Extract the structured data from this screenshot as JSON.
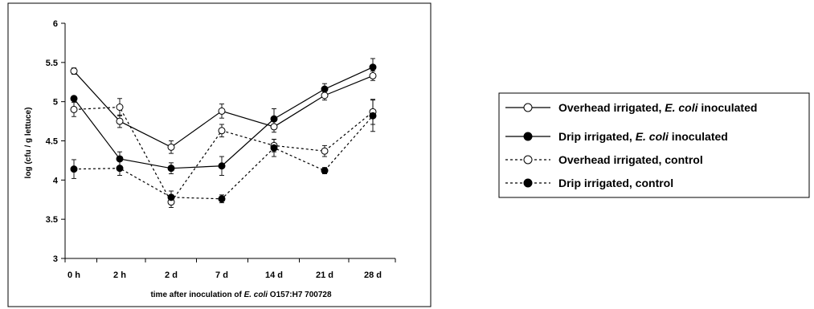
{
  "chart_data": {
    "type": "line",
    "categories": [
      "0 h",
      "2 h",
      "2 d",
      "7 d",
      "14 d",
      "21 d",
      "28 d"
    ],
    "ylim": [
      3,
      6
    ],
    "yticks": [
      "3",
      "3.5",
      "4",
      "4.5",
      "5",
      "5.5",
      "6"
    ],
    "ylabel": "log (cfu / g lettuce)",
    "xlabel": {
      "prefix": "time after inoculation of ",
      "italic": "E. coli",
      "suffix": " O157:H7 700728"
    },
    "legend_position": "right",
    "grid": false,
    "series": [
      {
        "name": "Overhead irrigated, E. coli inoculated",
        "legend": {
          "prefix": "Overhead irrigated, ",
          "italic": "E. coli",
          "suffix": " inoculated"
        },
        "marker": "open-circle",
        "line": "solid",
        "values": [
          5.39,
          4.75,
          4.42,
          4.88,
          4.68,
          5.08,
          5.33
        ],
        "errors": [
          0.04,
          0.08,
          0.08,
          0.09,
          0.07,
          0.06,
          0.06
        ]
      },
      {
        "name": "Drip irrigated, E. coli inoculated",
        "legend": {
          "prefix": "Drip irrigated, ",
          "italic": "E. coli",
          "suffix": " inoculated"
        },
        "marker": "filled-circle",
        "line": "solid",
        "values": [
          5.04,
          4.27,
          4.15,
          4.18,
          4.78,
          5.16,
          5.44
        ],
        "errors": [
          0.03,
          0.09,
          0.07,
          0.12,
          0.13,
          0.07,
          0.11
        ]
      },
      {
        "name": "Overhead irrigated, control",
        "legend": {
          "prefix": "Overhead irrigated, control",
          "italic": "",
          "suffix": ""
        },
        "marker": "open-circle",
        "line": "dashed",
        "values": [
          4.9,
          4.93,
          3.72,
          4.63,
          4.44,
          4.37,
          4.87
        ],
        "errors": [
          0.09,
          0.11,
          0.07,
          0.08,
          0.08,
          0.07,
          0.16
        ]
      },
      {
        "name": "Drip irrigated, control",
        "legend": {
          "prefix": "Drip irrigated, control",
          "italic": "",
          "suffix": ""
        },
        "marker": "filled-circle",
        "line": "dashed",
        "values": [
          4.14,
          4.15,
          3.78,
          3.76,
          4.41,
          4.12,
          4.82
        ],
        "errors": [
          0.12,
          0.09,
          0.08,
          0.05,
          0.11,
          0.04,
          0.2
        ]
      }
    ]
  }
}
